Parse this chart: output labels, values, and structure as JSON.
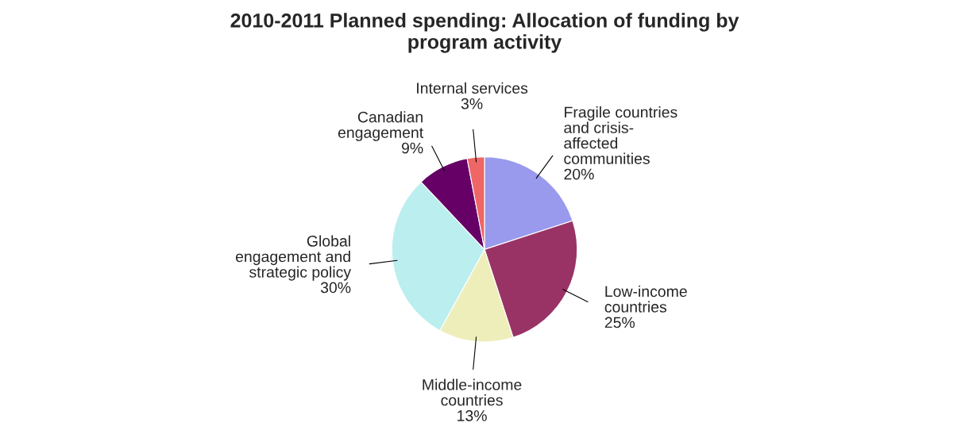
{
  "chart_data": {
    "type": "pie",
    "title": "2010-2011 Planned spending: Allocation of funding by\nprogram activity",
    "categories": [
      "Fragile countries\nand crisis-\naffected\ncommunities",
      "Low-income\ncountries",
      "Middle-income\ncountries",
      "Global\nengagement and\nstrategic policy",
      "Canadian\nengagement",
      "Internal services"
    ],
    "values": [
      20,
      25,
      13,
      30,
      9,
      3
    ],
    "value_labels": [
      "20%",
      "25%",
      "13%",
      "30%",
      "9%",
      "3%"
    ],
    "colors": [
      "#9999ee",
      "#993366",
      "#eeeebb",
      "#bbeeee",
      "#660066",
      "#ee6666"
    ],
    "legend": false
  }
}
